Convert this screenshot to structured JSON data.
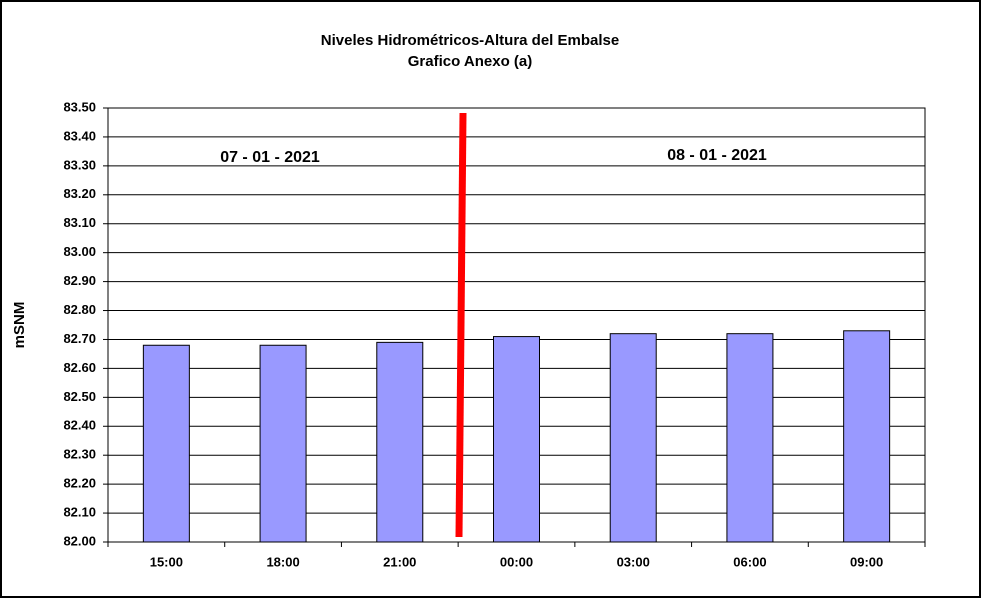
{
  "chart_data": {
    "type": "bar",
    "title": "Niveles Hidrométricos-Altura del Embalse",
    "subtitle": "Grafico Anexo (a)",
    "y_label": "mSNM",
    "annotations": [
      "07 - 01 - 2021",
      "08 - 01 - 2021"
    ],
    "categories": [
      "15:00",
      "18:00",
      "21:00",
      "00:00",
      "03:00",
      "06:00",
      "09:00"
    ],
    "values": [
      82.68,
      82.68,
      82.69,
      82.71,
      82.72,
      82.72,
      82.73
    ],
    "color": "#9999ff",
    "ylim": [
      82.0,
      83.5
    ],
    "yticks": [
      {
        "value": 82.0,
        "label": "82.00"
      },
      {
        "value": 82.1,
        "label": "82.10"
      },
      {
        "value": 82.2,
        "label": "82.20"
      },
      {
        "value": 82.3,
        "label": "82.30"
      },
      {
        "value": 82.4,
        "label": "82.40"
      },
      {
        "value": 82.5,
        "label": "82.50"
      },
      {
        "value": 82.6,
        "label": "82.60"
      },
      {
        "value": 82.7,
        "label": "82.70"
      },
      {
        "value": 82.8,
        "label": "82.80"
      },
      {
        "value": 82.9,
        "label": "82.90"
      },
      {
        "value": 83.0,
        "label": "83.00"
      },
      {
        "value": 83.1,
        "label": "83.10"
      },
      {
        "value": 83.2,
        "label": "83.20"
      },
      {
        "value": 83.3,
        "label": "83.30"
      },
      {
        "value": 83.4,
        "label": "83.40"
      },
      {
        "value": 83.5,
        "label": "83.50"
      }
    ],
    "grid": true
  }
}
